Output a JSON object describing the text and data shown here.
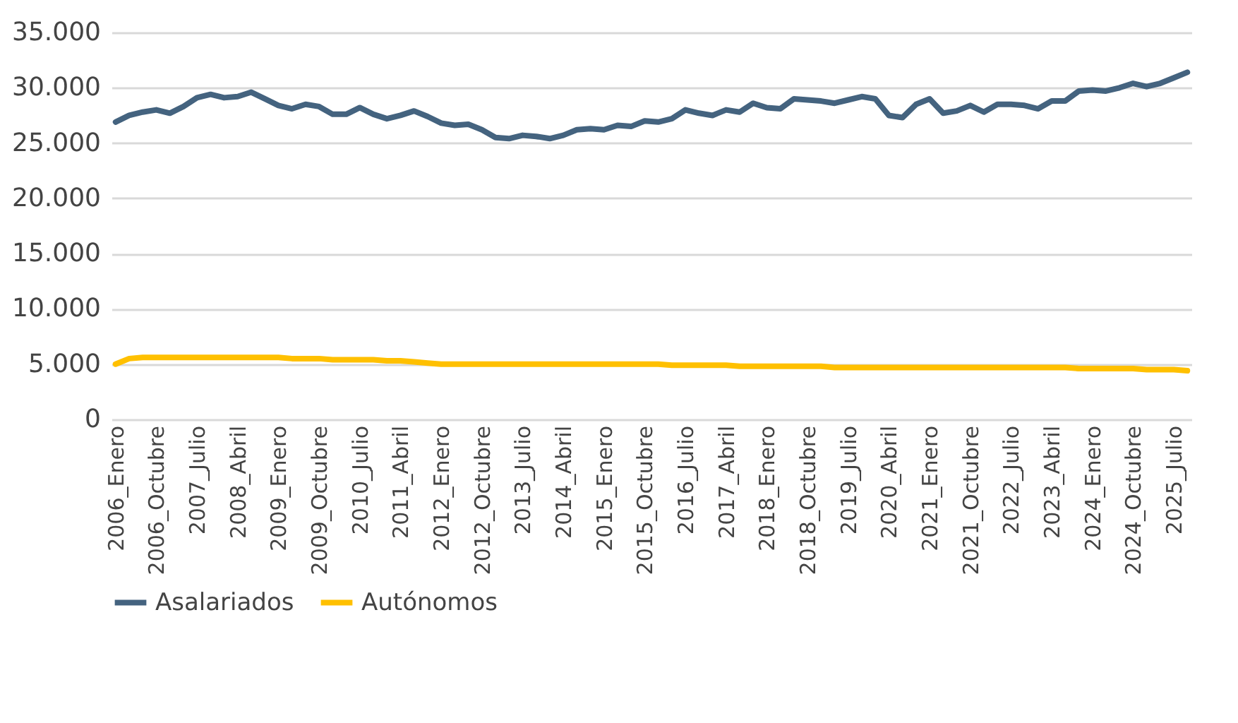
{
  "chart_data": {
    "type": "line",
    "categories": [
      "2006_Enero",
      null,
      null,
      "2006_Octubre",
      null,
      null,
      "2007_Julio",
      null,
      null,
      "2008_Abril",
      null,
      null,
      "2009_Enero",
      null,
      null,
      "2009_Octubre",
      null,
      null,
      "2010_Julio",
      null,
      null,
      "2011_Abril",
      null,
      null,
      "2012_Enero",
      null,
      null,
      "2012_Octubre",
      null,
      null,
      "2013_Julio",
      null,
      null,
      "2014_Abril",
      null,
      null,
      "2015_Enero",
      null,
      null,
      "2015_Octubre",
      null,
      null,
      "2016_Julio",
      null,
      null,
      "2017_Abril",
      null,
      null,
      "2018_Enero",
      null,
      null,
      "2018_Octubre",
      null,
      null,
      "2019_Julio",
      null,
      null,
      "2020_Abril",
      null,
      null,
      "2021_Enero",
      null,
      null,
      "2021_Octubre",
      null,
      null,
      "2022_Julio",
      null,
      null,
      "2023_Abril",
      null,
      null,
      "2024_Enero",
      null,
      null,
      "2024_Octubre",
      null,
      null,
      "2025_Julio",
      null
    ],
    "series": [
      {
        "name": "Asalariados",
        "color": "#44637f",
        "values": [
          26900,
          27500,
          27800,
          28000,
          27700,
          28300,
          29100,
          29400,
          29100,
          29200,
          29600,
          29000,
          28400,
          28100,
          28500,
          28300,
          27600,
          27600,
          28200,
          27600,
          27200,
          27500,
          27900,
          27400,
          26800,
          26600,
          26700,
          26200,
          25500,
          25400,
          25700,
          25600,
          25400,
          25700,
          26200,
          26300,
          26200,
          26600,
          26500,
          27000,
          26900,
          27200,
          28000,
          27700,
          27500,
          28000,
          27800,
          28600,
          28200,
          28100,
          29000,
          28900,
          28800,
          28600,
          28900,
          29200,
          29000,
          27500,
          27300,
          28500,
          29000,
          27700,
          27900,
          28400,
          27800,
          28500,
          28500,
          28400,
          28100,
          28800,
          28800,
          29700,
          29800,
          29700,
          30000,
          30400,
          30100,
          30400,
          30900,
          31400
        ]
      },
      {
        "name": "Autónomos",
        "color": "#ffc000",
        "values": [
          5000,
          5500,
          5600,
          5600,
          5600,
          5600,
          5600,
          5600,
          5600,
          5600,
          5600,
          5600,
          5600,
          5500,
          5500,
          5500,
          5400,
          5400,
          5400,
          5400,
          5300,
          5300,
          5200,
          5100,
          5000,
          5000,
          5000,
          5000,
          5000,
          5000,
          5000,
          5000,
          5000,
          5000,
          5000,
          5000,
          5000,
          5000,
          5000,
          5000,
          5000,
          4900,
          4900,
          4900,
          4900,
          4900,
          4800,
          4800,
          4800,
          4800,
          4800,
          4800,
          4800,
          4700,
          4700,
          4700,
          4700,
          4700,
          4700,
          4700,
          4700,
          4700,
          4700,
          4700,
          4700,
          4700,
          4700,
          4700,
          4700,
          4700,
          4700,
          4600,
          4600,
          4600,
          4600,
          4600,
          4500,
          4500,
          4500,
          4400
        ]
      }
    ],
    "ylim": [
      0,
      35000
    ],
    "yticks": [
      {
        "value": 0,
        "label": "0"
      },
      {
        "value": 5000,
        "label": "5.000"
      },
      {
        "value": 10000,
        "label": "10.000"
      },
      {
        "value": 15000,
        "label": "15.000"
      },
      {
        "value": 20000,
        "label": "20.000"
      },
      {
        "value": 25000,
        "label": "25.000"
      },
      {
        "value": 30000,
        "label": "30.000"
      },
      {
        "value": 35000,
        "label": "35.000"
      }
    ],
    "grid": "y",
    "legend": "bottom",
    "marker": "none",
    "line_style": "solid"
  }
}
